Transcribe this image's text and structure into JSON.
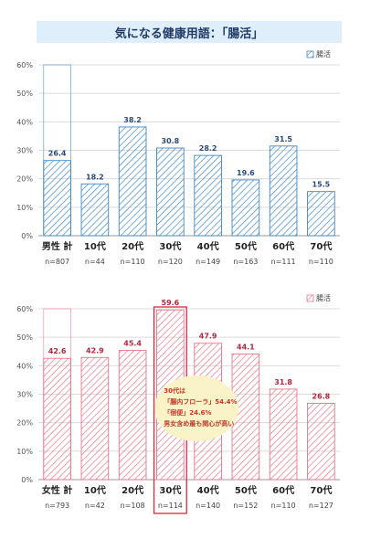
{
  "page_title": "気になる健康用語：「腸活」",
  "chart_data": [
    {
      "type": "bar",
      "legend": "腸活",
      "legend_position": "top-right",
      "color": "#3f88c5",
      "categories": [
        "男性 計",
        "10代",
        "20代",
        "30代",
        "40代",
        "50代",
        "60代",
        "70代"
      ],
      "n": [
        "n=807",
        "n=44",
        "n=110",
        "n=120",
        "n=149",
        "n=163",
        "n=111",
        "n=110"
      ],
      "values": [
        26.4,
        18.2,
        38.2,
        30.8,
        28.2,
        19.6,
        31.5,
        15.5
      ],
      "value_labels": [
        "26.4",
        "18.2",
        "38.2",
        "30.8",
        "28.2",
        "19.6",
        "31.5",
        "15.5"
      ],
      "yticks": [
        "0%",
        "10%",
        "20%",
        "30%",
        "40%",
        "50%",
        "60%"
      ],
      "ylim": [
        0,
        60
      ],
      "grid": true
    },
    {
      "type": "bar",
      "legend": "腸活",
      "legend_position": "top-right",
      "color": "#e8768a",
      "categories": [
        "女性 計",
        "10代",
        "20代",
        "30代",
        "40代",
        "50代",
        "60代",
        "70代"
      ],
      "n": [
        "n=793",
        "n=42",
        "n=108",
        "n=114",
        "n=140",
        "n=152",
        "n=110",
        "n=127"
      ],
      "values": [
        42.6,
        42.9,
        45.4,
        59.6,
        47.9,
        44.1,
        31.8,
        26.8
      ],
      "value_labels": [
        "42.6",
        "42.9",
        "45.4",
        "59.6",
        "47.9",
        "44.1",
        "31.8",
        "26.8"
      ],
      "yticks": [
        "0%",
        "10%",
        "20%",
        "30%",
        "40%",
        "50%",
        "60%"
      ],
      "ylim": [
        0,
        60
      ],
      "grid": true,
      "highlight_category": "30代",
      "annotation": {
        "lines": [
          [
            {
              "text": "30代は",
              "color": "#c0392b"
            }
          ],
          [
            {
              "text": "「腸内フローラ」",
              "color": "#c0392b"
            },
            {
              "text": "54.4%",
              "color": "#c0392b"
            }
          ],
          [
            {
              "text": "「宿便」",
              "color": "#c0392b"
            },
            {
              "text": "24.6%",
              "color": "#c0392b"
            }
          ],
          [
            {
              "text": "男女含め最も関心が高い",
              "color": "#c0392b"
            }
          ]
        ],
        "fill": "#fbf3c8"
      }
    }
  ]
}
